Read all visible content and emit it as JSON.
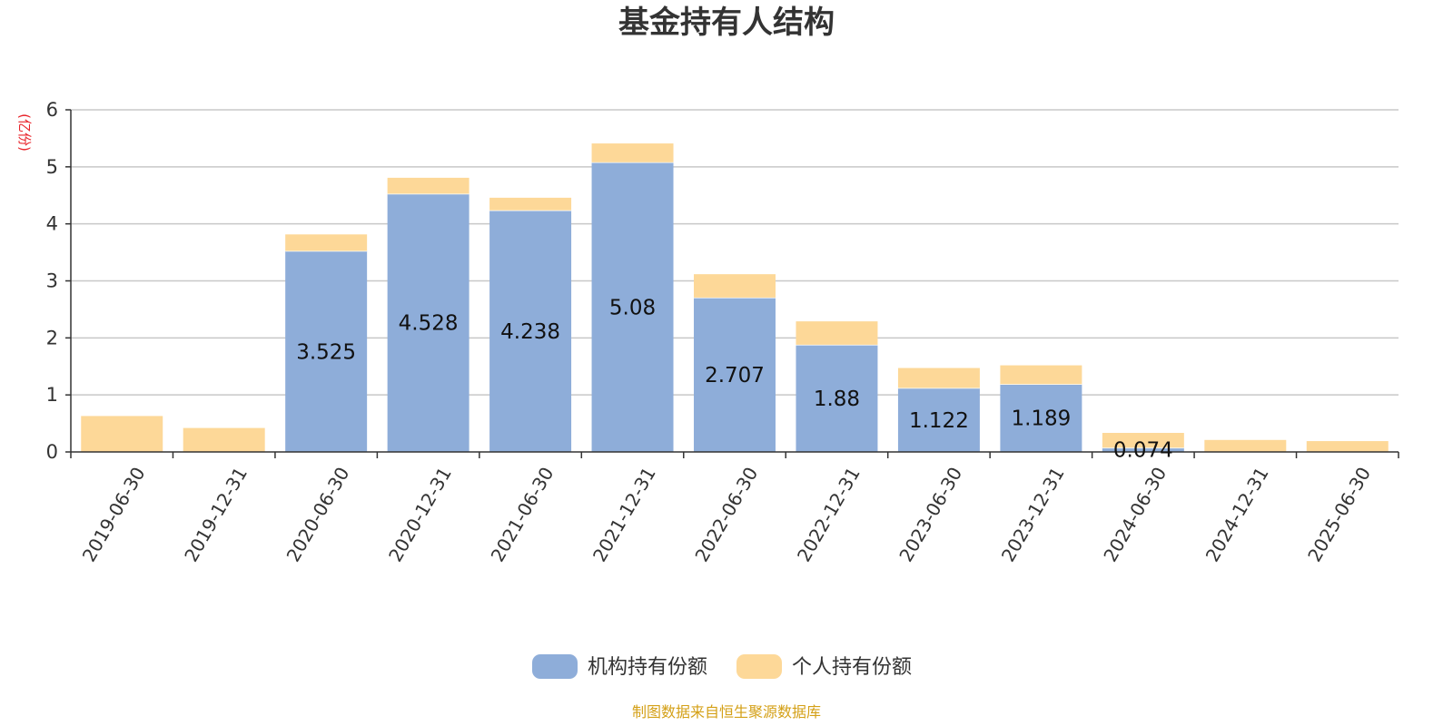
{
  "chart_data": {
    "type": "bar",
    "stacked": true,
    "title": "基金持有人结构",
    "y_unit": "(亿份)",
    "ylim": [
      0,
      6
    ],
    "y_ticks": [
      0,
      1,
      2,
      3,
      4,
      5,
      6
    ],
    "grid": true,
    "legend_position": "bottom",
    "categories": [
      "2019-06-30",
      "2019-12-31",
      "2020-06-30",
      "2020-12-31",
      "2021-06-30",
      "2021-12-31",
      "2022-06-30",
      "2022-12-31",
      "2023-06-30",
      "2023-12-31",
      "2024-06-30",
      "2024-12-31",
      "2025-06-30"
    ],
    "series": [
      {
        "name": "机构持有份额",
        "color": "#8eadd9",
        "values": [
          0,
          0,
          3.525,
          4.528,
          4.238,
          5.08,
          2.707,
          1.88,
          1.122,
          1.189,
          0.074,
          0,
          0
        ],
        "labels": [
          "",
          "",
          "3.525",
          "4.528",
          "4.238",
          "5.08",
          "2.707",
          "1.88",
          "1.122",
          "1.189",
          "0.074",
          "",
          ""
        ]
      },
      {
        "name": "个人持有份额",
        "color": "#fdd898",
        "values": [
          0.63,
          0.42,
          0.29,
          0.28,
          0.22,
          0.33,
          0.41,
          0.41,
          0.35,
          0.33,
          0.26,
          0.21,
          0.19
        ]
      }
    ],
    "source": "制图数据来自恒生聚源数据库",
    "unit_color": "#e8232a",
    "source_color": "#d4a017"
  }
}
